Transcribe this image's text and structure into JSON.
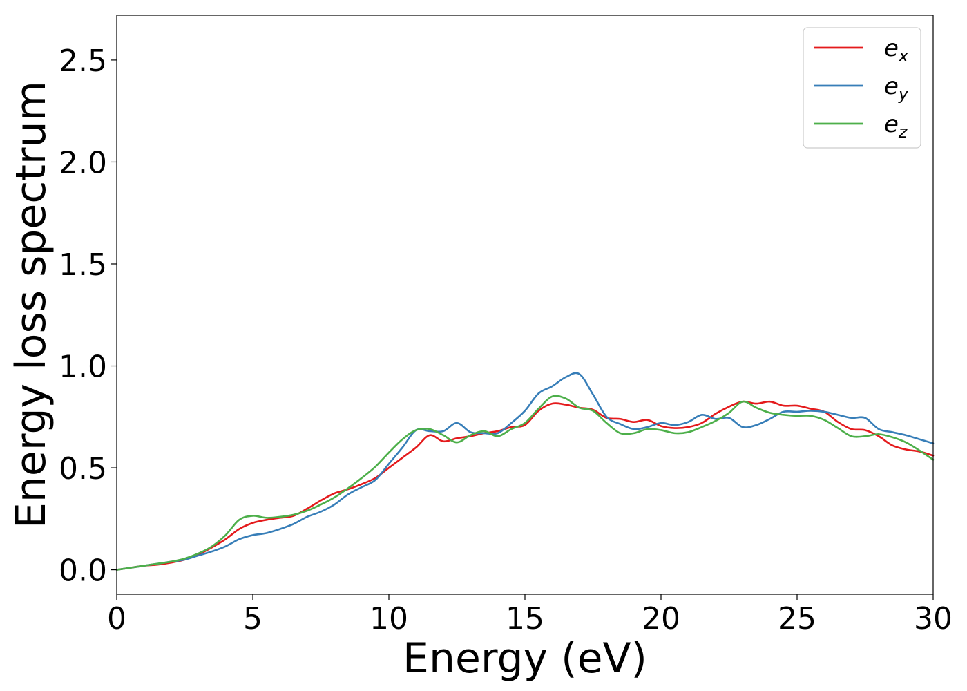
{
  "chart_data": {
    "type": "line",
    "title": "",
    "xlabel": "Energy (eV)",
    "ylabel": "Energy loss spectrum",
    "xlim": [
      0,
      30
    ],
    "ylim": [
      -0.12,
      2.72
    ],
    "xticks": [
      0,
      5,
      10,
      15,
      20,
      25,
      30
    ],
    "xtick_labels": [
      "0",
      "5",
      "10",
      "15",
      "20",
      "25",
      "30"
    ],
    "yticks": [
      0.0,
      0.5,
      1.0,
      1.5,
      2.0,
      2.5
    ],
    "ytick_labels": [
      "0.0",
      "0.5",
      "1.0",
      "1.5",
      "2.0",
      "2.5"
    ],
    "grid": false,
    "legend_position": "top-right",
    "x": [
      0,
      0.5,
      1,
      1.5,
      2,
      2.5,
      3,
      3.5,
      4,
      4.5,
      5,
      5.5,
      6,
      6.5,
      7,
      7.5,
      8,
      8.5,
      9,
      9.5,
      10,
      10.5,
      11,
      11.5,
      12,
      12.5,
      13,
      13.5,
      14,
      14.5,
      15,
      15.5,
      16,
      16.5,
      17,
      17.5,
      18,
      18.5,
      19,
      19.5,
      20,
      20.5,
      21,
      21.5,
      22,
      22.5,
      23,
      23.5,
      24,
      24.5,
      25,
      25.5,
      26,
      26.5,
      27,
      27.5,
      28,
      28.5,
      29,
      29.5,
      30
    ],
    "series": [
      {
        "name": "e",
        "subscript": "x",
        "color": "#e41a1c",
        "values": [
          0.0,
          0.01,
          0.02,
          0.025,
          0.035,
          0.05,
          0.075,
          0.11,
          0.15,
          0.2,
          0.23,
          0.245,
          0.255,
          0.265,
          0.3,
          0.34,
          0.375,
          0.395,
          0.42,
          0.45,
          0.5,
          0.55,
          0.6,
          0.66,
          0.63,
          0.645,
          0.655,
          0.67,
          0.68,
          0.7,
          0.71,
          0.78,
          0.815,
          0.81,
          0.795,
          0.785,
          0.745,
          0.74,
          0.725,
          0.735,
          0.705,
          0.695,
          0.7,
          0.72,
          0.765,
          0.8,
          0.825,
          0.815,
          0.825,
          0.805,
          0.805,
          0.79,
          0.775,
          0.725,
          0.69,
          0.685,
          0.655,
          0.61,
          0.59,
          0.58,
          0.56
        ]
      },
      {
        "name": "e",
        "subscript": "y",
        "color": "#377eb8",
        "values": [
          0.0,
          0.01,
          0.02,
          0.03,
          0.04,
          0.05,
          0.07,
          0.09,
          0.115,
          0.15,
          0.17,
          0.18,
          0.2,
          0.225,
          0.26,
          0.285,
          0.32,
          0.37,
          0.405,
          0.44,
          0.52,
          0.6,
          0.685,
          0.68,
          0.68,
          0.72,
          0.675,
          0.67,
          0.67,
          0.72,
          0.78,
          0.865,
          0.9,
          0.945,
          0.96,
          0.86,
          0.75,
          0.715,
          0.69,
          0.7,
          0.72,
          0.71,
          0.725,
          0.76,
          0.74,
          0.745,
          0.7,
          0.71,
          0.74,
          0.775,
          0.775,
          0.78,
          0.775,
          0.76,
          0.745,
          0.745,
          0.69,
          0.675,
          0.66,
          0.64,
          0.62
        ]
      },
      {
        "name": "e",
        "subscript": "z",
        "color": "#4daf4a",
        "values": [
          0.0,
          0.01,
          0.02,
          0.03,
          0.04,
          0.055,
          0.08,
          0.115,
          0.17,
          0.245,
          0.265,
          0.255,
          0.26,
          0.27,
          0.29,
          0.32,
          0.355,
          0.4,
          0.45,
          0.505,
          0.575,
          0.64,
          0.685,
          0.69,
          0.66,
          0.625,
          0.66,
          0.68,
          0.655,
          0.69,
          0.72,
          0.79,
          0.85,
          0.84,
          0.795,
          0.78,
          0.72,
          0.67,
          0.67,
          0.69,
          0.685,
          0.67,
          0.675,
          0.7,
          0.73,
          0.77,
          0.825,
          0.795,
          0.77,
          0.76,
          0.755,
          0.755,
          0.735,
          0.695,
          0.655,
          0.655,
          0.665,
          0.65,
          0.625,
          0.585,
          0.54
        ]
      }
    ]
  }
}
